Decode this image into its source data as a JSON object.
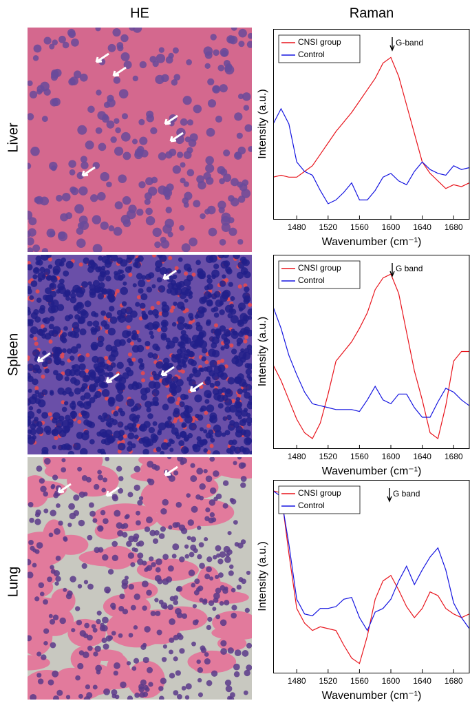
{
  "headers": [
    "HE",
    "Raman"
  ],
  "row_labels": [
    "Liver",
    "Spleen",
    "Lung"
  ],
  "chart_data": [
    {
      "type": "line",
      "xlabel": "Wavenumber (cm⁻¹)",
      "ylabel": "Intensity (a.u.)",
      "annotation": "G-band",
      "x": [
        1450,
        1460,
        1470,
        1480,
        1490,
        1500,
        1510,
        1520,
        1530,
        1540,
        1550,
        1560,
        1570,
        1580,
        1590,
        1600,
        1610,
        1620,
        1630,
        1640,
        1650,
        1660,
        1670,
        1680,
        1690,
        1700
      ],
      "series": [
        {
          "name": "CNSI group",
          "color": "#e8141c",
          "values": [
            2.2,
            2.3,
            2.2,
            2.2,
            2.5,
            2.8,
            3.4,
            4.0,
            4.6,
            5.1,
            5.6,
            6.2,
            6.8,
            7.4,
            8.2,
            8.5,
            7.5,
            6.0,
            4.5,
            3.0,
            2.4,
            2.0,
            1.6,
            1.8,
            1.7,
            1.9
          ]
        },
        {
          "name": "Control",
          "color": "#1414e0",
          "values": [
            5.0,
            5.8,
            5.0,
            3.0,
            2.5,
            2.3,
            1.5,
            0.8,
            1.0,
            1.4,
            1.9,
            1.0,
            1.0,
            1.5,
            2.2,
            2.4,
            2.0,
            1.8,
            2.5,
            3.0,
            2.6,
            2.4,
            2.3,
            2.8,
            2.6,
            2.7
          ]
        }
      ],
      "xlim": [
        1450,
        1700
      ],
      "ylim": [
        0,
        10
      ],
      "xticks": [
        1480,
        1520,
        1560,
        1600,
        1640,
        1680
      ],
      "legend": "upper-left"
    },
    {
      "type": "line",
      "xlabel": "Wavenumber (cm⁻¹)",
      "ylabel": "Intensity (a.u.)",
      "annotation": "G band",
      "x": [
        1450,
        1460,
        1470,
        1480,
        1490,
        1500,
        1510,
        1520,
        1530,
        1540,
        1550,
        1560,
        1570,
        1580,
        1590,
        1600,
        1610,
        1620,
        1630,
        1640,
        1650,
        1660,
        1670,
        1680,
        1690,
        1700
      ],
      "series": [
        {
          "name": "CNSI group",
          "color": "#e8141c",
          "values": [
            4.3,
            3.5,
            2.5,
            1.5,
            0.8,
            0.5,
            1.3,
            2.8,
            4.5,
            5.0,
            5.5,
            6.2,
            7.0,
            8.2,
            8.8,
            9.0,
            8.0,
            6.0,
            4.0,
            2.5,
            0.8,
            0.5,
            2.2,
            4.5,
            5.0,
            5.0
          ]
        },
        {
          "name": "Control",
          "color": "#1414e0",
          "values": [
            7.3,
            6.2,
            4.8,
            3.8,
            2.9,
            2.3,
            2.2,
            2.1,
            2.0,
            2.0,
            2.0,
            1.9,
            2.5,
            3.2,
            2.5,
            2.3,
            2.8,
            2.8,
            2.1,
            1.6,
            1.6,
            2.4,
            3.1,
            2.9,
            2.5,
            2.2
          ]
        }
      ],
      "xlim": [
        1450,
        1700
      ],
      "ylim": [
        0,
        10
      ],
      "xticks": [
        1480,
        1520,
        1560,
        1600,
        1640,
        1680
      ],
      "legend": "upper-left"
    },
    {
      "type": "line",
      "xlabel": "Wavenumber (cm⁻¹)",
      "ylabel": "Intensity (a.u.)",
      "annotation": "G band",
      "x": [
        1450,
        1460,
        1470,
        1480,
        1490,
        1500,
        1510,
        1520,
        1530,
        1540,
        1550,
        1560,
        1570,
        1580,
        1590,
        1600,
        1610,
        1620,
        1630,
        1640,
        1650,
        1660,
        1670,
        1680,
        1690,
        1700
      ],
      "series": [
        {
          "name": "CNSI group",
          "color": "#e8141c",
          "values": [
            9.9,
            9.8,
            6.5,
            3.5,
            2.7,
            2.3,
            2.5,
            2.4,
            2.3,
            1.5,
            0.8,
            0.5,
            2.0,
            4.0,
            5.0,
            5.3,
            4.5,
            3.6,
            3.0,
            3.5,
            4.4,
            4.2,
            3.5,
            3.2,
            3.0,
            3.2
          ]
        },
        {
          "name": "Control",
          "color": "#1414e0",
          "values": [
            9.9,
            9.6,
            7.0,
            4.0,
            3.2,
            3.1,
            3.5,
            3.5,
            3.6,
            4.0,
            4.1,
            3.0,
            2.3,
            3.3,
            3.5,
            4.0,
            5.0,
            5.8,
            4.8,
            5.6,
            6.3,
            6.8,
            5.6,
            3.8,
            3.0,
            2.4
          ]
        }
      ],
      "xlim": [
        1450,
        1700
      ],
      "ylim": [
        0,
        10.5
      ],
      "xticks": [
        1480,
        1520,
        1560,
        1600,
        1640,
        1680
      ],
      "legend": "upper-left"
    }
  ]
}
